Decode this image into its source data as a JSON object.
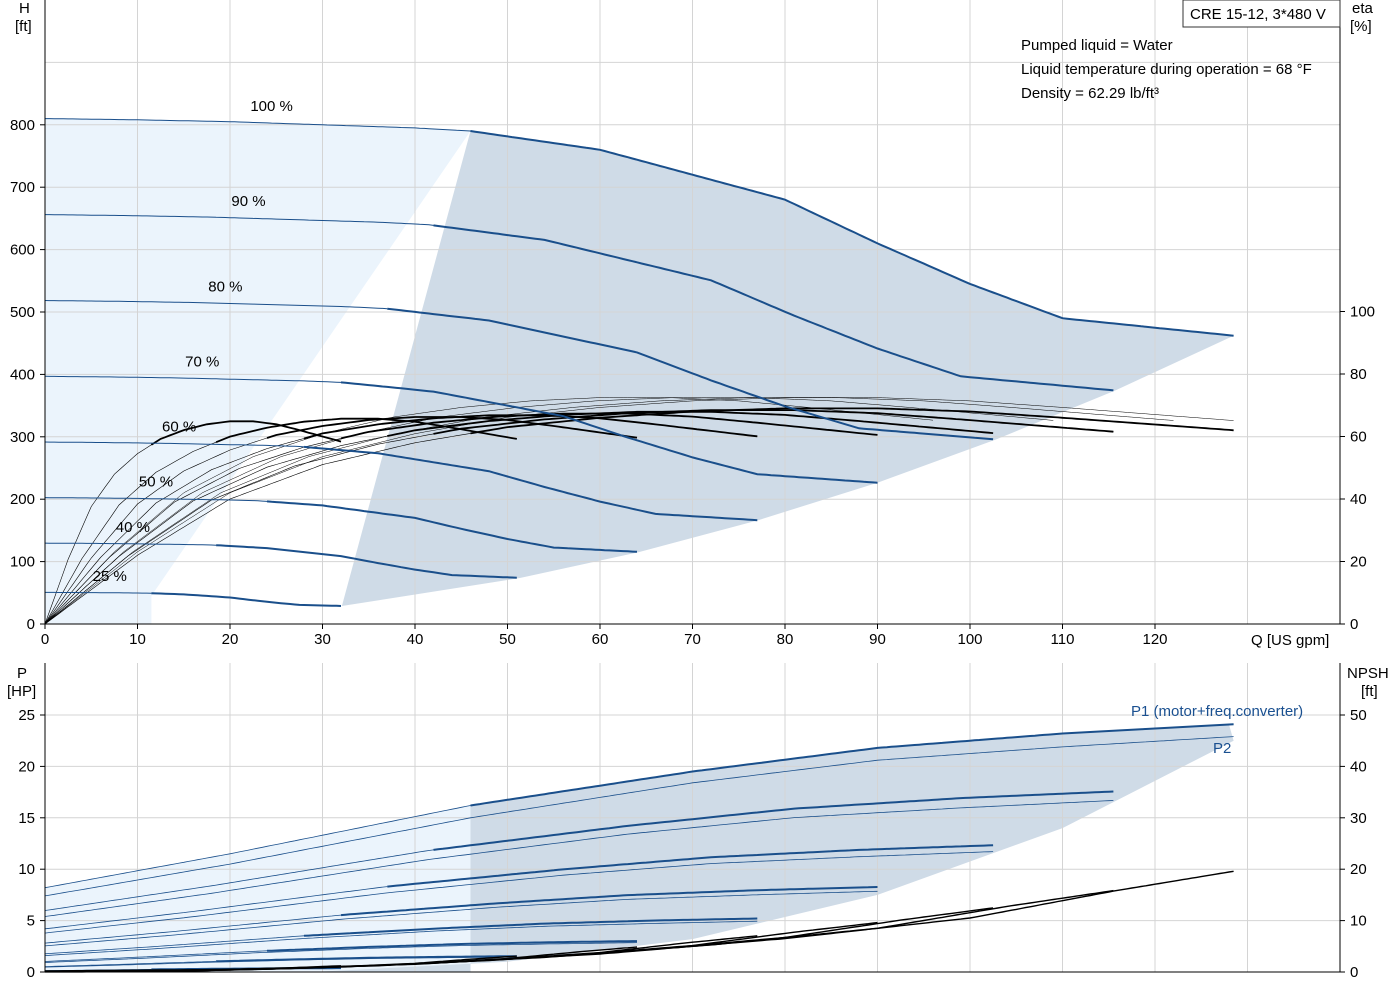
{
  "model_label": "CRE 15-12, 3*480 V",
  "info_lines": [
    "Pumped liquid = Water",
    "Liquid temperature during operation = 68 °F",
    "Density = 62.29 lb/ft³"
  ],
  "colors": {
    "head_curve": "#1a4f8b",
    "eff_curve": "#000000",
    "op_area": "#cfdbe7",
    "ext_area": "#ebf4fc",
    "grid": "#d4d4d4"
  },
  "chart_data": [
    {
      "type": "line",
      "name": "head_efficiency",
      "x_axis": {
        "label": "Q [US gpm]",
        "ticks": [
          0,
          10,
          20,
          30,
          40,
          50,
          60,
          70,
          80,
          90,
          100,
          110,
          120
        ],
        "range": [
          0,
          140
        ]
      },
      "y_axis_left": {
        "label_top": "H",
        "label_unit": "[ft]",
        "ticks": [
          0,
          100,
          200,
          300,
          400,
          500,
          600,
          700,
          800
        ],
        "range": [
          0,
          1000
        ]
      },
      "y_axis_right": {
        "label_top": "eta",
        "label_unit": "[%]",
        "ticks": [
          0,
          20,
          40,
          60,
          80,
          100
        ],
        "range": [
          0,
          100
        ]
      },
      "speed_labels": [
        "100 %",
        "90 %",
        "80 %",
        "70 %",
        "60 %",
        "50 %",
        "40 %",
        "25 %"
      ],
      "speed_fraction": [
        1.0,
        0.9,
        0.8,
        0.7,
        0.6,
        0.5,
        0.4,
        0.25
      ],
      "head_curve_100pct": {
        "q": [
          0,
          10,
          20,
          30,
          40,
          46,
          60,
          70,
          80,
          90,
          100,
          110,
          128.5
        ],
        "h": [
          810,
          808,
          805,
          800,
          795,
          790,
          760,
          720,
          680,
          610,
          545,
          490,
          462
        ]
      },
      "max_flow_per_speed": [
        128.5,
        115.7,
        102.8,
        90,
        77.1,
        64.3,
        51.4,
        32.1
      ],
      "efficiency_100pct": {
        "q": [
          0,
          10,
          20,
          30,
          40,
          50,
          60,
          70,
          80,
          90,
          100,
          110,
          128.5
        ],
        "eta": [
          0,
          22,
          40,
          51,
          58,
          63,
          66,
          68,
          69,
          69,
          68,
          66,
          62
        ]
      }
    },
    {
      "type": "line",
      "name": "power_npsh",
      "x_axis": {
        "ticks": [
          0,
          10,
          20,
          30,
          40,
          50,
          60,
          70,
          80,
          90,
          100,
          110,
          120
        ],
        "range": [
          0,
          140
        ]
      },
      "y_axis_left": {
        "label_top": "P",
        "label_unit": "[HP]",
        "ticks": [
          0,
          5,
          10,
          15,
          20,
          25
        ],
        "range": [
          0,
          25
        ]
      },
      "y_axis_right": {
        "label_top": "NPSH",
        "label_unit": "[ft]",
        "ticks": [
          0,
          10,
          20,
          30,
          40,
          50
        ],
        "range": [
          0,
          50
        ]
      },
      "series_labels": {
        "p1": "P1 (motor+freq.converter)",
        "p2": "P2"
      },
      "p1_100pct": {
        "q": [
          0,
          20,
          46,
          70,
          90,
          110,
          128.5
        ],
        "p": [
          8.2,
          11.5,
          16.2,
          19.5,
          21.8,
          23.2,
          24.1
        ]
      },
      "p2_100pct": {
        "q": [
          0,
          20,
          46,
          70,
          90,
          110,
          128.5
        ],
        "p": [
          7.4,
          10.5,
          15.0,
          18.4,
          20.6,
          21.9,
          22.9
        ]
      },
      "npsh_100pct": {
        "q": [
          0,
          20,
          40,
          60,
          80,
          100,
          115.7,
          128.5
        ],
        "npsh": [
          0.2,
          0.5,
          1.5,
          3.5,
          6.5,
          10.5,
          15.8,
          19.6
        ]
      }
    }
  ]
}
